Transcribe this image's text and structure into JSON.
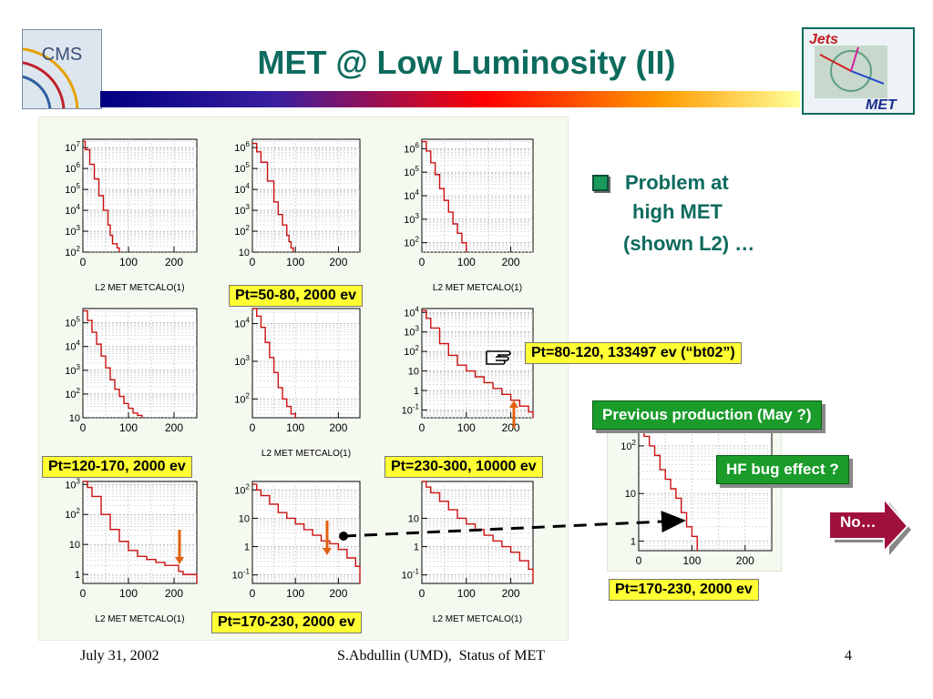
{
  "title": "MET @ Low Luminosity (II)",
  "logos": {
    "cms_text": "CMS",
    "jets_text": "Jets",
    "met_text": "MET"
  },
  "bullet": {
    "text_line1": "Problem at",
    "text_line2": "high MET",
    "text_line3": "(shown L2) …"
  },
  "labels": {
    "pt_50_80": "Pt=50-80, 2000 ev",
    "pt_80_120": "Pt=80-120, 133497 ev (“bt02”)",
    "pt_120_170": "Pt=120-170, 2000 ev",
    "pt_230_300": "Pt=230-300, 10000 ev",
    "pt_170_230_left": "Pt=170-230, 2000 ev",
    "pt_170_230_right": "Pt=170-230, 2000 ev"
  },
  "callouts": {
    "previous_production": "Previous production (May ?)",
    "hf_bug": "HF bug effect ?",
    "no": "No…"
  },
  "footer": {
    "date": "July 31, 2002",
    "center": "S.Abdullin (UMD),  Status of MET",
    "page": "4"
  },
  "colors": {
    "title": "#0d6b5e",
    "accent_green": "#1a9b2a",
    "label_yellow": "#ffff33",
    "curve_red": "#cc1111",
    "no_button": "#a0103c"
  },
  "chart_data": [
    {
      "type": "line",
      "panel": "r1c1",
      "xlabel": "L2 MET METCALO(1)",
      "xticks": [
        "0",
        "100",
        "200"
      ],
      "yticks": [
        "10^2",
        "10^3",
        "10^4",
        "10^5",
        "10^6",
        "10^7"
      ],
      "xlim": [
        0,
        250
      ],
      "ylog": [
        2,
        7.4
      ],
      "series": [
        {
          "x": [
            0,
            5,
            15,
            25,
            35,
            45,
            55,
            60,
            65,
            75,
            80
          ],
          "y": [
            7.3,
            6.9,
            6.2,
            5.5,
            4.7,
            4.0,
            3.3,
            2.8,
            2.4,
            2.2,
            2.0
          ]
        }
      ]
    },
    {
      "type": "line",
      "panel": "r1c2",
      "xlabel": "",
      "xticks": [
        "0",
        "100",
        "200"
      ],
      "yticks": [
        "10",
        "10^2",
        "10^3",
        "10^4",
        "10^5",
        "10^6"
      ],
      "xlim": [
        0,
        250
      ],
      "ylog": [
        1,
        6.4
      ],
      "series": [
        {
          "x": [
            0,
            10,
            20,
            35,
            50,
            60,
            70,
            80,
            85,
            90,
            95
          ],
          "y": [
            6.2,
            5.8,
            5.3,
            4.4,
            3.4,
            2.8,
            2.3,
            1.8,
            1.5,
            1.2,
            1.0
          ]
        }
      ]
    },
    {
      "type": "line",
      "panel": "r1c3",
      "xlabel": "L2 MET METCALO(1)",
      "xticks": [
        "0",
        "100",
        "200"
      ],
      "yticks": [
        "10^2",
        "10^3",
        "10^4",
        "10^5",
        "10^6"
      ],
      "xlim": [
        0,
        250
      ],
      "ylog": [
        1.6,
        6.4
      ],
      "series": [
        {
          "x": [
            0,
            10,
            20,
            30,
            40,
            50,
            60,
            70,
            80,
            90,
            100
          ],
          "y": [
            6.3,
            5.9,
            5.4,
            4.9,
            4.3,
            3.8,
            3.3,
            2.8,
            2.4,
            2.0,
            1.7
          ]
        }
      ]
    },
    {
      "type": "line",
      "panel": "r2c1",
      "xlabel": "",
      "xticks": [
        "0",
        "100",
        "200"
      ],
      "yticks": [
        "10",
        "10^2",
        "10^3",
        "10^4",
        "10^5"
      ],
      "xlim": [
        0,
        250
      ],
      "ylog": [
        1,
        5.6
      ],
      "series": [
        {
          "x": [
            0,
            10,
            20,
            30,
            40,
            50,
            60,
            70,
            80,
            90,
            100,
            110,
            120,
            130
          ],
          "y": [
            5.5,
            5.1,
            4.6,
            4.1,
            3.6,
            3.1,
            2.6,
            2.2,
            1.9,
            1.6,
            1.4,
            1.2,
            1.1,
            1.0
          ]
        }
      ]
    },
    {
      "type": "line",
      "panel": "r2c2",
      "xlabel": "L2 MET METCALO(1)",
      "xticks": [
        "0",
        "100",
        "200"
      ],
      "yticks": [
        "10^2",
        "10^3",
        "10^4"
      ],
      "xlim": [
        0,
        250
      ],
      "ylog": [
        1.5,
        4.4
      ],
      "series": [
        {
          "x": [
            0,
            10,
            20,
            30,
            40,
            50,
            60,
            70,
            80,
            90,
            100
          ],
          "y": [
            4.4,
            4.2,
            3.9,
            3.5,
            3.1,
            2.7,
            2.3,
            2.0,
            1.8,
            1.6,
            1.5
          ]
        }
      ]
    },
    {
      "type": "line",
      "panel": "r2c3",
      "xlabel": "",
      "xticks": [
        "0",
        "100",
        "200"
      ],
      "yticks": [
        "10^-1",
        "1",
        "10",
        "10^2",
        "10^3",
        "10^4"
      ],
      "xlim": [
        0,
        250
      ],
      "ylog": [
        -1.4,
        4.2
      ],
      "series": [
        {
          "x": [
            0,
            10,
            20,
            40,
            60,
            80,
            100,
            120,
            140,
            160,
            180,
            200,
            220,
            240,
            250
          ],
          "y": [
            4.1,
            3.7,
            3.2,
            2.4,
            1.8,
            1.3,
            1.0,
            0.7,
            0.4,
            0.1,
            -0.2,
            -0.5,
            -0.8,
            -1.1,
            -1.3
          ]
        }
      ]
    },
    {
      "type": "line",
      "panel": "r3c1",
      "xlabel": "L2 MET METCALO(1)",
      "xticks": [
        "0",
        "100",
        "200"
      ],
      "yticks": [
        "1",
        "10",
        "10^2",
        "10^3"
      ],
      "xlim": [
        0,
        250
      ],
      "ylog": [
        -0.3,
        3.1
      ],
      "series": [
        {
          "x": [
            0,
            10,
            20,
            40,
            60,
            80,
            100,
            120,
            140,
            160,
            180,
            200,
            210,
            220,
            240,
            250
          ],
          "y": [
            3.1,
            2.9,
            2.6,
            2.0,
            1.5,
            1.1,
            0.8,
            0.6,
            0.5,
            0.4,
            0.3,
            0.3,
            0.1,
            0.0,
            0.0,
            0.0
          ]
        }
      ]
    },
    {
      "type": "line",
      "panel": "r3c2",
      "xlabel": "",
      "xticks": [
        "0",
        "100",
        "200"
      ],
      "yticks": [
        "10^-1",
        "1",
        "10",
        "10^2"
      ],
      "xlim": [
        0,
        250
      ],
      "ylog": [
        -1.3,
        2.3
      ],
      "series": [
        {
          "x": [
            0,
            10,
            20,
            40,
            60,
            80,
            100,
            120,
            140,
            160,
            180,
            200,
            220,
            240,
            250
          ],
          "y": [
            2.2,
            2.0,
            1.8,
            1.5,
            1.2,
            1.0,
            0.8,
            0.6,
            0.4,
            0.2,
            0.1,
            -0.1,
            -0.4,
            -0.7,
            -1.0
          ]
        }
      ]
    },
    {
      "type": "line",
      "panel": "r3c3",
      "xlabel": "L2 MET METCALO(1)",
      "xticks": [
        "0",
        "100",
        "200"
      ],
      "yticks": [
        "10^-1",
        "1",
        "10"
      ],
      "xlim": [
        0,
        250
      ],
      "ylog": [
        -1.3,
        2.3
      ],
      "series": [
        {
          "x": [
            0,
            10,
            20,
            40,
            60,
            80,
            100,
            120,
            140,
            160,
            180,
            200,
            220,
            240,
            250
          ],
          "y": [
            2.3,
            2.1,
            1.9,
            1.6,
            1.3,
            1.0,
            0.8,
            0.6,
            0.4,
            0.2,
            0.0,
            -0.2,
            -0.5,
            -0.8,
            -1.1
          ]
        }
      ]
    },
    {
      "type": "line",
      "panel": "inset",
      "xlabel": "",
      "xticks": [
        "0",
        "100",
        "200"
      ],
      "yticks": [
        "1",
        "10",
        "10^2"
      ],
      "xlim": [
        0,
        250
      ],
      "ylog": [
        -0.2,
        2.4
      ],
      "series": [
        {
          "x": [
            0,
            10,
            20,
            30,
            40,
            50,
            60,
            70,
            80,
            90,
            100,
            110
          ],
          "y": [
            2.4,
            2.2,
            2.0,
            1.8,
            1.5,
            1.3,
            1.1,
            0.9,
            0.6,
            0.3,
            0.1,
            -0.1
          ]
        }
      ]
    }
  ]
}
